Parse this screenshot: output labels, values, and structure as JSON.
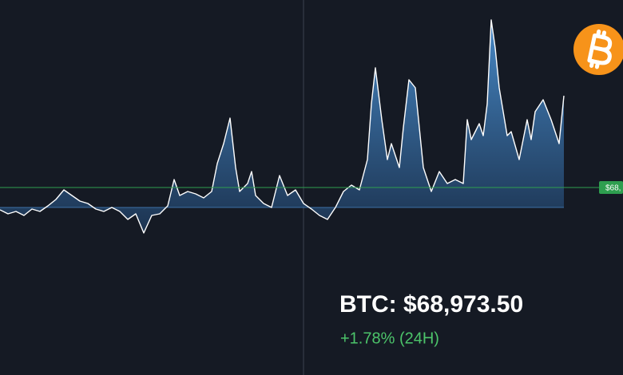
{
  "chart_data": {
    "type": "area",
    "title": "BTC: $68,973.50",
    "subtitle": "+1.78% (24H)",
    "price_tag": "$68,",
    "price_line": 25,
    "crosshair_x": 380,
    "color": "#4a8fd0",
    "line_color": "#ffffff",
    "price_line_color": "#2e9e4f",
    "xlim": [
      0,
      780
    ],
    "ylim": [
      -40,
      240
    ],
    "x": [
      0,
      10,
      20,
      30,
      40,
      50,
      60,
      70,
      80,
      90,
      100,
      110,
      120,
      130,
      140,
      150,
      160,
      170,
      180,
      190,
      200,
      210,
      218,
      225,
      235,
      245,
      255,
      265,
      272,
      280,
      288,
      295,
      300,
      310,
      315,
      320,
      330,
      340,
      345,
      350,
      360,
      370,
      380,
      390,
      400,
      410,
      420,
      430,
      440,
      450,
      460,
      465,
      470,
      478,
      485,
      490,
      500,
      505,
      512,
      520,
      525,
      530,
      540,
      550,
      560,
      570,
      580,
      585,
      590,
      600,
      605,
      610,
      615,
      620,
      625,
      630,
      635,
      640,
      650,
      660,
      665,
      670,
      680,
      690,
      700,
      706
    ],
    "values": [
      -3,
      -8,
      -5,
      -10,
      -2,
      -5,
      2,
      10,
      22,
      15,
      8,
      5,
      -2,
      -5,
      0,
      -5,
      -15,
      -8,
      -32,
      -10,
      -8,
      2,
      35,
      15,
      20,
      17,
      12,
      20,
      55,
      80,
      112,
      50,
      20,
      30,
      45,
      15,
      5,
      0,
      20,
      40,
      15,
      22,
      5,
      -2,
      -10,
      -15,
      0,
      20,
      28,
      22,
      60,
      130,
      175,
      110,
      60,
      80,
      50,
      100,
      160,
      150,
      100,
      50,
      20,
      45,
      30,
      35,
      30,
      110,
      85,
      105,
      90,
      130,
      235,
      200,
      150,
      120,
      90,
      95,
      60,
      110,
      85,
      120,
      135,
      110,
      80,
      140
    ]
  }
}
